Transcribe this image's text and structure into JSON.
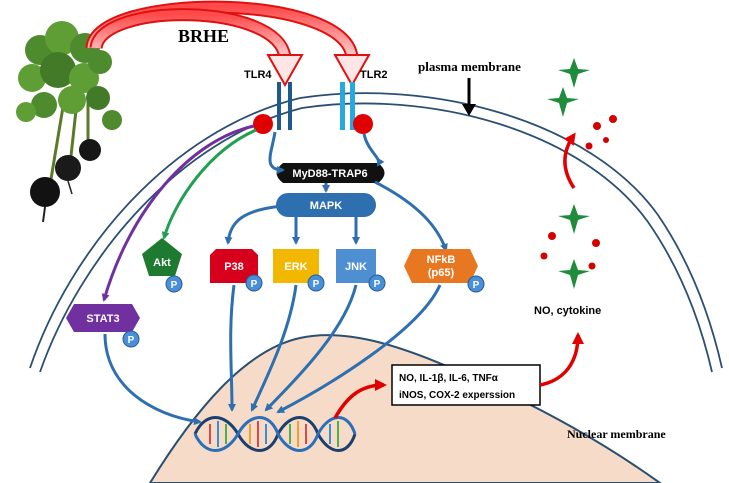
{
  "title": "BRHE",
  "membrane_labels": {
    "plasma": "plasma membrane",
    "nuclear": "Nuclear membrane"
  },
  "receptors": [
    {
      "label": "TLR4",
      "color": "#1f5a8c"
    },
    {
      "label": "TLR2",
      "color": "#29a8e0"
    }
  ],
  "adaptor": {
    "label": "MyD88-TRAP6"
  },
  "mapk": {
    "label": "MAPK"
  },
  "kinases": [
    {
      "label": "STAT3",
      "color": "#7030a0"
    },
    {
      "label": "Akt",
      "color": "#1e7a2e"
    },
    {
      "label": "P38",
      "color": "#d6001c"
    },
    {
      "label": "ERK",
      "color": "#f2b700"
    },
    {
      "label": "JNK",
      "color": "#4d8fd1"
    },
    {
      "label": "NFkB",
      "sublabel": "(p65)",
      "color": "#e87722"
    }
  ],
  "phospho_label": "P",
  "expression_box": {
    "line1": "NO, IL-1β, IL-6, TNFα",
    "line2": "iNOS, COX-2 experssion"
  },
  "secretion_label": "NO, cytokine",
  "colors": {
    "arrow_blue": "#2e6fb0",
    "red_arrow": "#e00000",
    "receptor_dot": "#e00000",
    "phospho": "#4a90d9",
    "nucleus_fill": "#f6dcc8",
    "star_green": "#1e8c3a",
    "dot_red": "#d40000"
  },
  "icons": [
    "radish-plant",
    "dna-helix",
    "star",
    "down-arrow"
  ]
}
